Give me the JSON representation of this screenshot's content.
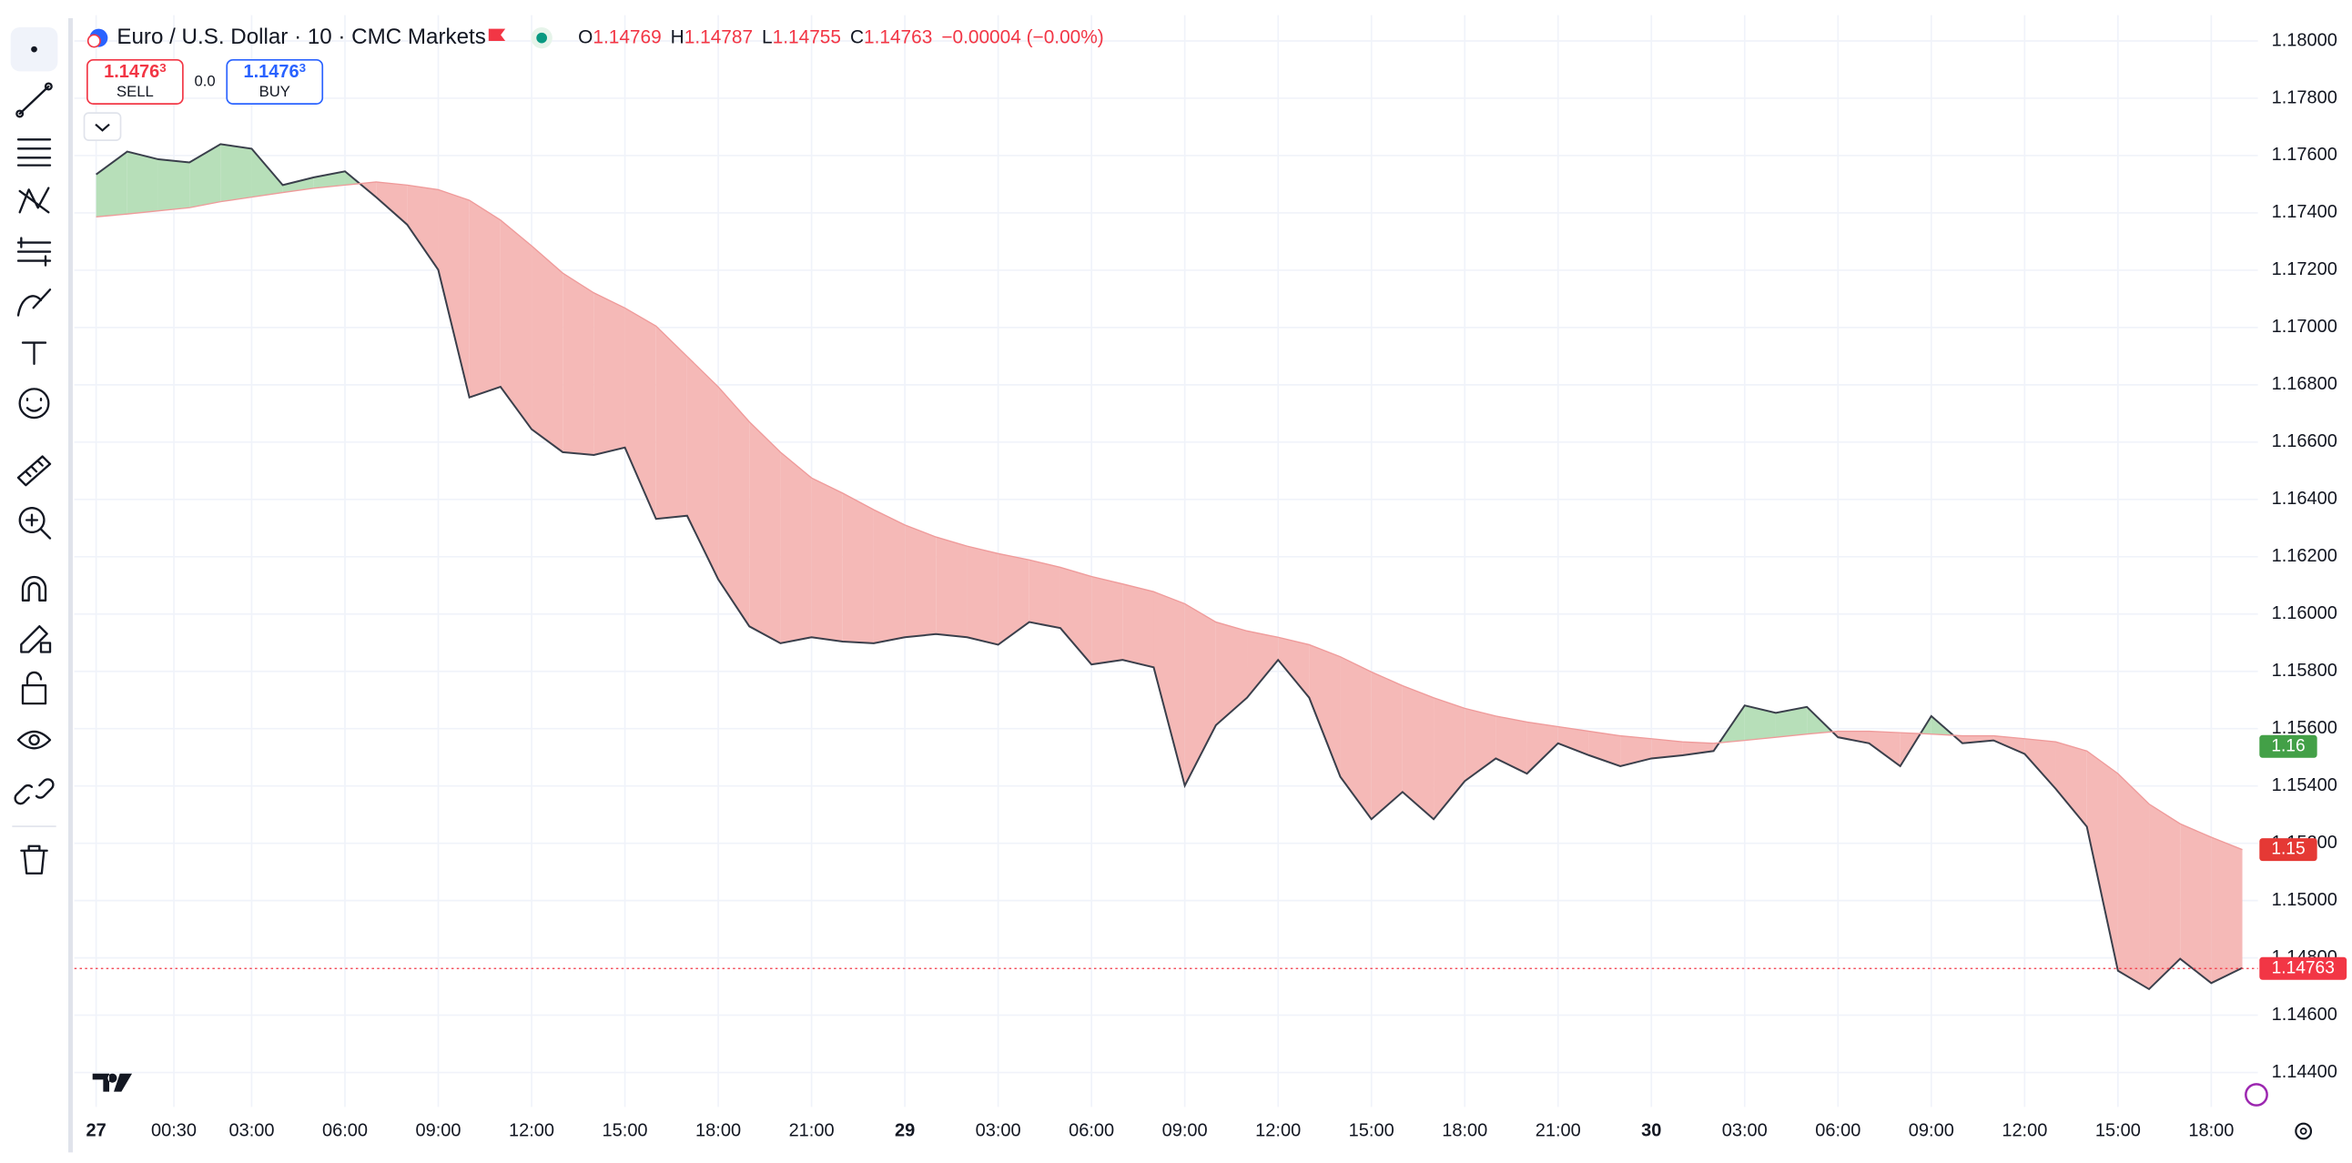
{
  "header": {
    "symbol": "Euro / U.S. Dollar · 10 · CMC Markets",
    "ohlc": [
      {
        "key": "O",
        "value": "1.14769"
      },
      {
        "key": "H",
        "value": "1.14787"
      },
      {
        "key": "L",
        "value": "1.14755"
      },
      {
        "key": "C",
        "value": "1.14763"
      }
    ],
    "change": "−0.00004 (−0.00%)"
  },
  "trade": {
    "sell": {
      "price": "1.1476",
      "pip": "3",
      "label": "SELL"
    },
    "spread": "0.0",
    "buy": {
      "price": "1.1476",
      "pip": "3",
      "label": "BUY"
    }
  },
  "chart_data": {
    "type": "cloud",
    "x": [
      -2,
      -1,
      0,
      1,
      2,
      3,
      4,
      5,
      6,
      7,
      8,
      9,
      10,
      11,
      12,
      13,
      14,
      15,
      16,
      17,
      18,
      19,
      20,
      21,
      22,
      23,
      24,
      25,
      26,
      27,
      28,
      29,
      30,
      31,
      32,
      33,
      34,
      35,
      36,
      37,
      38,
      39,
      40,
      41,
      42,
      43,
      44,
      45,
      46,
      47,
      48,
      49,
      50,
      51,
      52,
      53,
      54,
      55,
      56,
      57,
      58,
      59,
      60,
      61,
      62,
      63,
      64,
      65,
      66,
      67
    ],
    "series": [
      {
        "color": "#3a3f4b",
        "values": [
          1.17534,
          1.17614,
          1.17587,
          1.17576,
          1.1764,
          1.17624,
          1.17497,
          1.17524,
          1.17545,
          1.17455,
          1.17359,
          1.17201,
          1.16756,
          1.16793,
          1.16645,
          1.16565,
          1.16555,
          1.16581,
          1.16332,
          1.16343,
          1.16121,
          1.15957,
          1.15898,
          1.15919,
          1.15904,
          1.15898,
          1.15919,
          1.1593,
          1.15919,
          1.15893,
          1.15972,
          1.15951,
          1.15824,
          1.1584,
          1.15814,
          1.15401,
          1.15612,
          1.15708,
          1.1584,
          1.15708,
          1.15432,
          1.15284,
          1.15379,
          1.15284,
          1.15417,
          1.15496,
          1.15443,
          1.15549,
          1.15507,
          1.15469,
          1.15496,
          1.15507,
          1.15522,
          1.15681,
          1.15655,
          1.15676,
          1.1557,
          1.15549,
          1.15469,
          1.15644,
          1.15549,
          1.15559,
          1.15512,
          1.1539,
          1.15258,
          1.14755,
          1.14691,
          1.14797,
          1.14712,
          1.14765
        ]
      },
      {
        "color": "#ef9a9a",
        "values": [
          1.17386,
          1.17396,
          1.17407,
          1.17418,
          1.17439,
          1.17455,
          1.17471,
          1.17486,
          1.17497,
          1.17508,
          1.17497,
          1.17481,
          1.17444,
          1.17375,
          1.17285,
          1.1719,
          1.17121,
          1.17068,
          1.17005,
          1.16899,
          1.16793,
          1.16671,
          1.16565,
          1.16475,
          1.16422,
          1.16364,
          1.16311,
          1.16269,
          1.16237,
          1.16211,
          1.16189,
          1.16163,
          1.16131,
          1.16105,
          1.16078,
          1.16036,
          1.15972,
          1.15941,
          1.15919,
          1.15893,
          1.15851,
          1.15798,
          1.1575,
          1.15708,
          1.15671,
          1.15644,
          1.15623,
          1.15607,
          1.15591,
          1.15575,
          1.15565,
          1.15554,
          1.15549,
          1.15559,
          1.1557,
          1.15581,
          1.15591,
          1.15591,
          1.15586,
          1.15581,
          1.15575,
          1.15575,
          1.15565,
          1.15554,
          1.15522,
          1.15443,
          1.15337,
          1.15268,
          1.15221,
          1.15178
        ]
      }
    ],
    "fill_up": "#b7dfb9",
    "fill_down": "#f5b9b7",
    "xlim": [
      -2.7,
      67.5
    ],
    "ylim": [
      1.1428,
      1.1809
    ],
    "xticks": [
      {
        "value": -2,
        "label": "27"
      },
      {
        "value": 0.5,
        "label": "00:30"
      },
      {
        "value": 3,
        "label": "03:00"
      },
      {
        "value": 6,
        "label": "06:00"
      },
      {
        "value": 9,
        "label": "09:00"
      },
      {
        "value": 12,
        "label": "12:00"
      },
      {
        "value": 15,
        "label": "15:00"
      },
      {
        "value": 18,
        "label": "18:00"
      },
      {
        "value": 21,
        "label": "21:00"
      },
      {
        "value": 24,
        "label": "29"
      },
      {
        "value": 27,
        "label": "03:00"
      },
      {
        "value": 30,
        "label": "06:00"
      },
      {
        "value": 33,
        "label": "09:00"
      },
      {
        "value": 36,
        "label": "12:00"
      },
      {
        "value": 39,
        "label": "15:00"
      },
      {
        "value": 42,
        "label": "18:00"
      },
      {
        "value": 45,
        "label": "21:00"
      },
      {
        "value": 48,
        "label": "30"
      },
      {
        "value": 51,
        "label": "03:00"
      },
      {
        "value": 54,
        "label": "06:00"
      },
      {
        "value": 57,
        "label": "09:00"
      },
      {
        "value": 60,
        "label": "12:00"
      },
      {
        "value": 63,
        "label": "15:00"
      },
      {
        "value": 66,
        "label": "18:00"
      }
    ],
    "yticks": [
      {
        "value": 1.18,
        "label": "1.18000"
      },
      {
        "value": 1.178,
        "label": "1.17800"
      },
      {
        "value": 1.176,
        "label": "1.17600"
      },
      {
        "value": 1.174,
        "label": "1.17400"
      },
      {
        "value": 1.172,
        "label": "1.17200"
      },
      {
        "value": 1.17,
        "label": "1.17000"
      },
      {
        "value": 1.168,
        "label": "1.16800"
      },
      {
        "value": 1.166,
        "label": "1.16600"
      },
      {
        "value": 1.164,
        "label": "1.16400"
      },
      {
        "value": 1.162,
        "label": "1.16200"
      },
      {
        "value": 1.16,
        "label": "1.16000"
      },
      {
        "value": 1.158,
        "label": "1.15800"
      },
      {
        "value": 1.156,
        "label": "1.15600"
      },
      {
        "value": 1.154,
        "label": "1.15400"
      },
      {
        "value": 1.152,
        "label": "1.15200"
      },
      {
        "value": 1.15,
        "label": "1.15000"
      },
      {
        "value": 1.148,
        "label": "1.14800"
      },
      {
        "value": 1.146,
        "label": "1.14600"
      },
      {
        "value": 1.144,
        "label": "1.14400"
      }
    ],
    "grid": true,
    "price_labels": [
      {
        "value": 1.15538,
        "label": "1.16",
        "color": "#43a047"
      },
      {
        "value": 1.15178,
        "label": "1.15",
        "color": "#e53935"
      },
      {
        "value": 1.14763,
        "label": "1.14763",
        "color": "#f23645",
        "dashed_line": true
      }
    ]
  }
}
